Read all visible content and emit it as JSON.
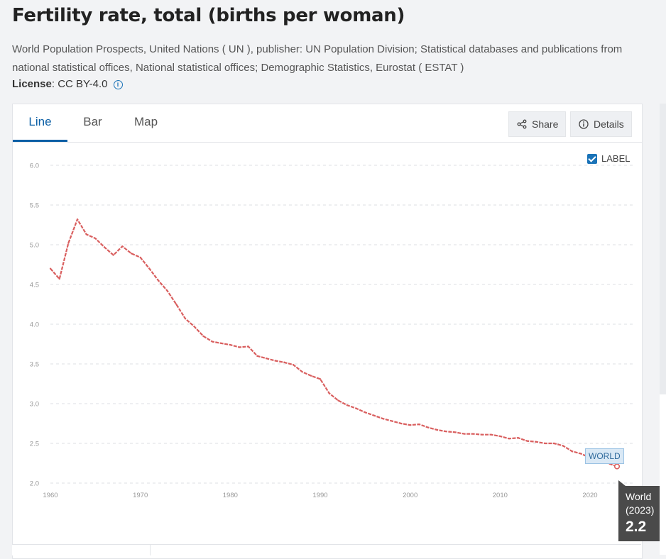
{
  "page": {
    "title": "Fertility rate, total (births per woman)",
    "source": "World Population Prospects, United Nations ( UN ), publisher: UN Population Division; Statistical databases and publications from national statistical offices, National statistical offices; Demographic Statistics, Eurostat ( ESTAT )",
    "license_label": "License",
    "license_value": ": CC BY-4.0"
  },
  "tabs": [
    "Line",
    "Bar",
    "Map"
  ],
  "buttons": {
    "share": "Share",
    "details": "Details"
  },
  "label_toggle": "LABEL",
  "tooltip": {
    "series": "World",
    "year": "(2023)",
    "value": "2.2"
  },
  "series_label": "WORLD",
  "colors": {
    "line": "#d95f5f",
    "accent": "#0b5fa5"
  },
  "chart_data": {
    "type": "line",
    "title": "Fertility rate, total (births per woman)",
    "xlabel": "",
    "ylabel": "",
    "ylim": [
      2.0,
      6.0
    ],
    "xlim": [
      1960,
      2023
    ],
    "yticks": [
      "2.0",
      "2.5",
      "3.0",
      "3.5",
      "4.0",
      "4.5",
      "5.0",
      "5.5",
      "6.0"
    ],
    "xticks": [
      "1960",
      "1970",
      "1980",
      "1990",
      "2000",
      "2010",
      "2020"
    ],
    "series": [
      {
        "name": "World",
        "x": [
          1960,
          1961,
          1962,
          1963,
          1964,
          1965,
          1966,
          1967,
          1968,
          1969,
          1970,
          1971,
          1972,
          1973,
          1974,
          1975,
          1976,
          1977,
          1978,
          1979,
          1980,
          1981,
          1982,
          1983,
          1984,
          1985,
          1986,
          1987,
          1988,
          1989,
          1990,
          1991,
          1992,
          1993,
          1994,
          1995,
          1996,
          1997,
          1998,
          1999,
          2000,
          2001,
          2002,
          2003,
          2004,
          2005,
          2006,
          2007,
          2008,
          2009,
          2010,
          2011,
          2012,
          2013,
          2014,
          2015,
          2016,
          2017,
          2018,
          2019,
          2020,
          2021,
          2022,
          2023
        ],
        "values": [
          4.7,
          4.57,
          5.02,
          5.32,
          5.13,
          5.08,
          4.97,
          4.87,
          4.98,
          4.89,
          4.84,
          4.7,
          4.55,
          4.42,
          4.25,
          4.07,
          3.97,
          3.85,
          3.78,
          3.76,
          3.74,
          3.71,
          3.72,
          3.6,
          3.57,
          3.54,
          3.52,
          3.49,
          3.4,
          3.35,
          3.31,
          3.13,
          3.04,
          2.98,
          2.94,
          2.89,
          2.85,
          2.81,
          2.78,
          2.75,
          2.73,
          2.74,
          2.7,
          2.67,
          2.65,
          2.64,
          2.62,
          2.62,
          2.61,
          2.61,
          2.59,
          2.56,
          2.57,
          2.53,
          2.52,
          2.5,
          2.5,
          2.47,
          2.4,
          2.37,
          2.32,
          2.28,
          2.25,
          2.21
        ]
      }
    ]
  }
}
